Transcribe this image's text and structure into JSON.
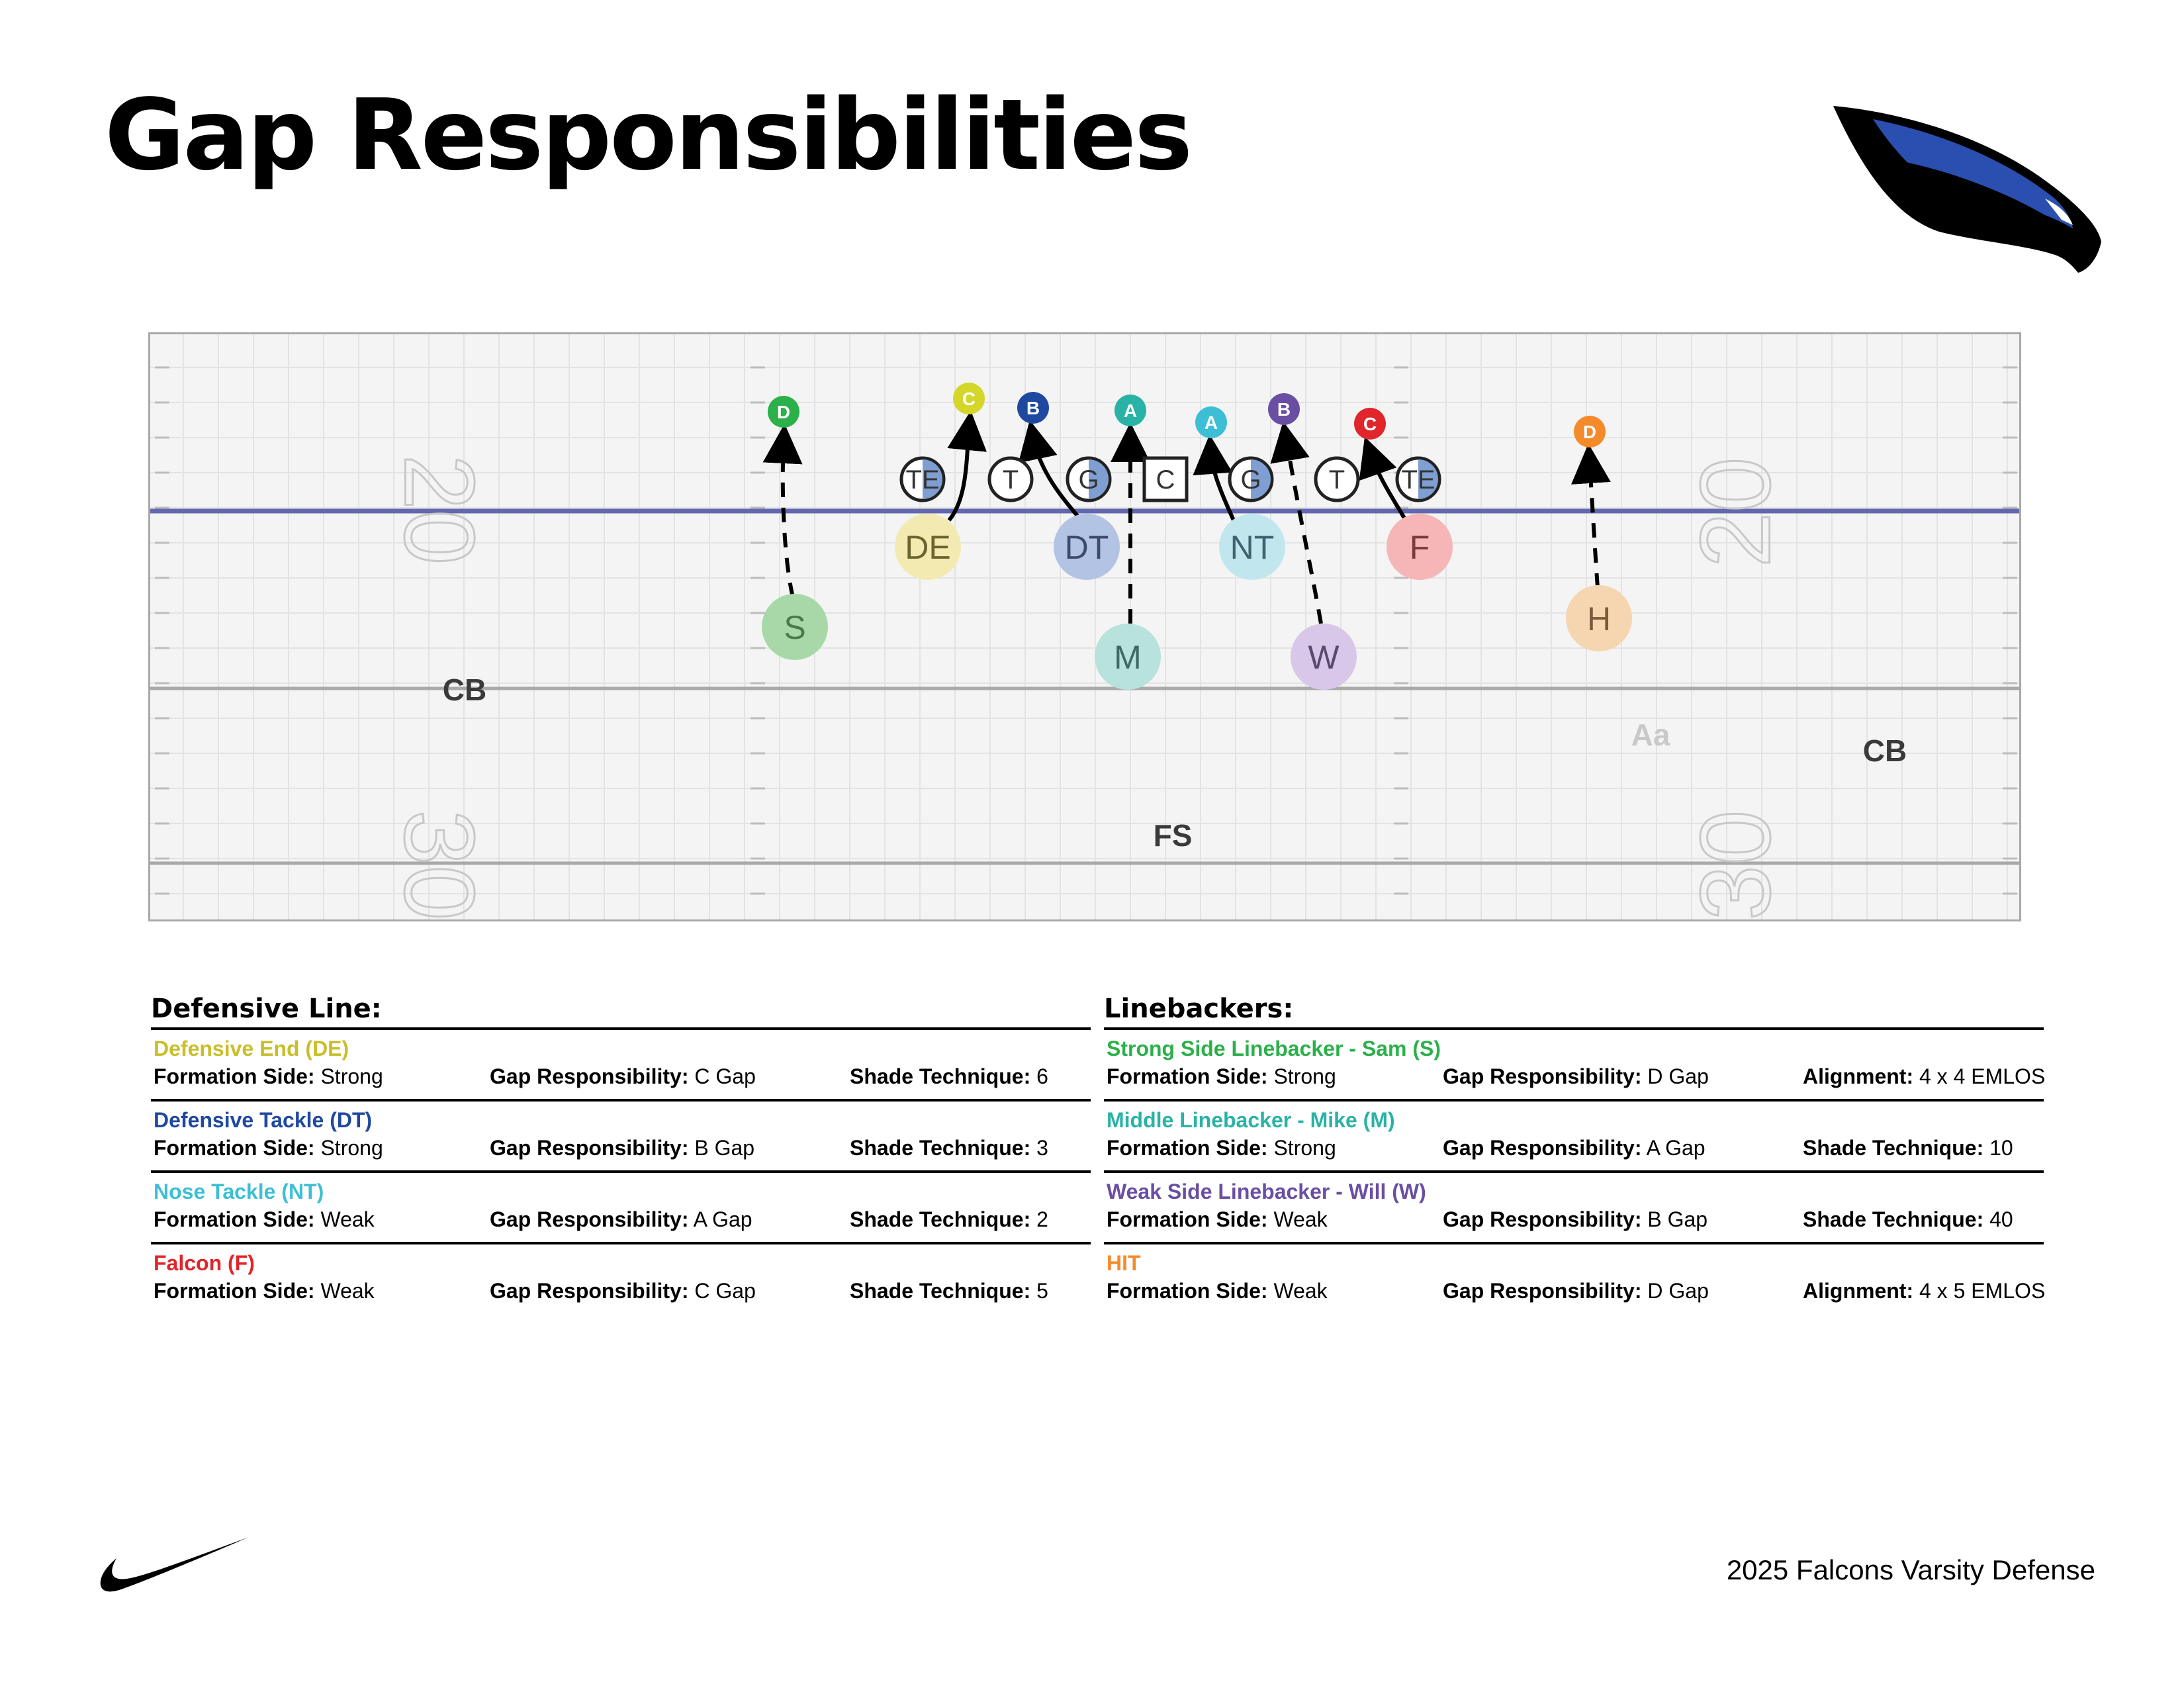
{
  "title": "Gap Responsibilities",
  "footer": "2025 Falcons Varsity Defense",
  "field": {
    "yard_numbers": [
      "20",
      "30"
    ],
    "offense": [
      {
        "label": "TE",
        "shape": "circle",
        "shaded": true
      },
      {
        "label": "T",
        "shape": "circle",
        "shaded": false
      },
      {
        "label": "G",
        "shape": "circle",
        "shaded": true
      },
      {
        "label": "C",
        "shape": "square",
        "shaded": false
      },
      {
        "label": "G",
        "shape": "circle",
        "shaded": true
      },
      {
        "label": "T",
        "shape": "circle",
        "shaded": false
      },
      {
        "label": "TE",
        "shape": "circle",
        "shaded": true
      }
    ],
    "defense": [
      {
        "label": "S",
        "color": "#a8d8a8",
        "text_color": "#4a7a4a"
      },
      {
        "label": "DE",
        "color": "#f3eab2",
        "text_color": "#6b6430"
      },
      {
        "label": "DT",
        "color": "#b2c3e3",
        "text_color": "#3d4b6b"
      },
      {
        "label": "M",
        "color": "#b7e3dc",
        "text_color": "#3d6b64"
      },
      {
        "label": "NT",
        "color": "#c2e6ee",
        "text_color": "#3d6470"
      },
      {
        "label": "W",
        "color": "#d9c7e9",
        "text_color": "#5a4a6e"
      },
      {
        "label": "F",
        "color": "#f6b5b7",
        "text_color": "#7a3a3c"
      },
      {
        "label": "H",
        "color": "#f6d5b1",
        "text_color": "#7a5a3a"
      }
    ],
    "gaps": [
      {
        "label": "D",
        "color": "#2bb04a"
      },
      {
        "label": "C",
        "color": "#d4d62a"
      },
      {
        "label": "B",
        "color": "#1f49a0"
      },
      {
        "label": "A",
        "color": "#29b3a6"
      },
      {
        "label": "A",
        "color": "#3cbfd6"
      },
      {
        "label": "B",
        "color": "#6a4ea3"
      },
      {
        "label": "C",
        "color": "#e0262b"
      },
      {
        "label": "D",
        "color": "#f58a2a"
      }
    ],
    "secondary": [
      {
        "label": "CB"
      },
      {
        "label": "CB"
      },
      {
        "label": "FS"
      },
      {
        "label": "Aa"
      }
    ]
  },
  "defensive_line": {
    "heading": "Defensive Line:",
    "players": [
      {
        "name": "Defensive End (DE)",
        "color": "#c9be2a",
        "side_label": "Formation Side:",
        "side": "Strong",
        "gap_label": "Gap Responsibility:",
        "gap": "C Gap",
        "tech_label": "Shade Technique:",
        "tech": "6"
      },
      {
        "name": "Defensive Tackle (DT)",
        "color": "#1f49a0",
        "side_label": "Formation Side:",
        "side": "Strong",
        "gap_label": "Gap Responsibility:",
        "gap": "B Gap",
        "tech_label": "Shade Technique:",
        "tech": "3"
      },
      {
        "name": "Nose Tackle (NT)",
        "color": "#3cbfd6",
        "side_label": "Formation Side:",
        "side": "Weak",
        "gap_label": "Gap Responsibility:",
        "gap": "A Gap",
        "tech_label": "Shade Technique:",
        "tech": "2"
      },
      {
        "name": "Falcon (F)",
        "color": "#e0262b",
        "side_label": "Formation Side:",
        "side": "Weak",
        "gap_label": "Gap Responsibility:",
        "gap": "C Gap",
        "tech_label": "Shade Technique:",
        "tech": "5"
      }
    ]
  },
  "linebackers": {
    "heading": "Linebackers:",
    "players": [
      {
        "name": "Strong Side Linebacker - Sam (S)",
        "color": "#2bb04a",
        "side_label": "Formation Side:",
        "side": "Strong",
        "gap_label": "Gap Responsibility:",
        "gap": "D Gap",
        "tech_label": "Alignment:",
        "tech": "4 x 4 EMLOS"
      },
      {
        "name": "Middle Linebacker - Mike (M)",
        "color": "#29b3a6",
        "side_label": "Formation Side:",
        "side": "Strong",
        "gap_label": "Gap Responsibility:",
        "gap": "A Gap",
        "tech_label": "Shade Technique:",
        "tech": "10"
      },
      {
        "name": "Weak Side Linebacker - Will (W)",
        "color": "#6a4ea3",
        "side_label": "Formation Side:",
        "side": "Weak",
        "gap_label": "Gap Responsibility:",
        "gap": "B Gap",
        "tech_label": "Shade Technique:",
        "tech": "40"
      },
      {
        "name": "HIT",
        "color": "#f58a2a",
        "side_label": "Formation Side:",
        "side": "Weak",
        "gap_label": "Gap Responsibility:",
        "gap": "D Gap",
        "tech_label": "Alignment:",
        "tech": " 4 x 5 EMLOS"
      }
    ]
  }
}
